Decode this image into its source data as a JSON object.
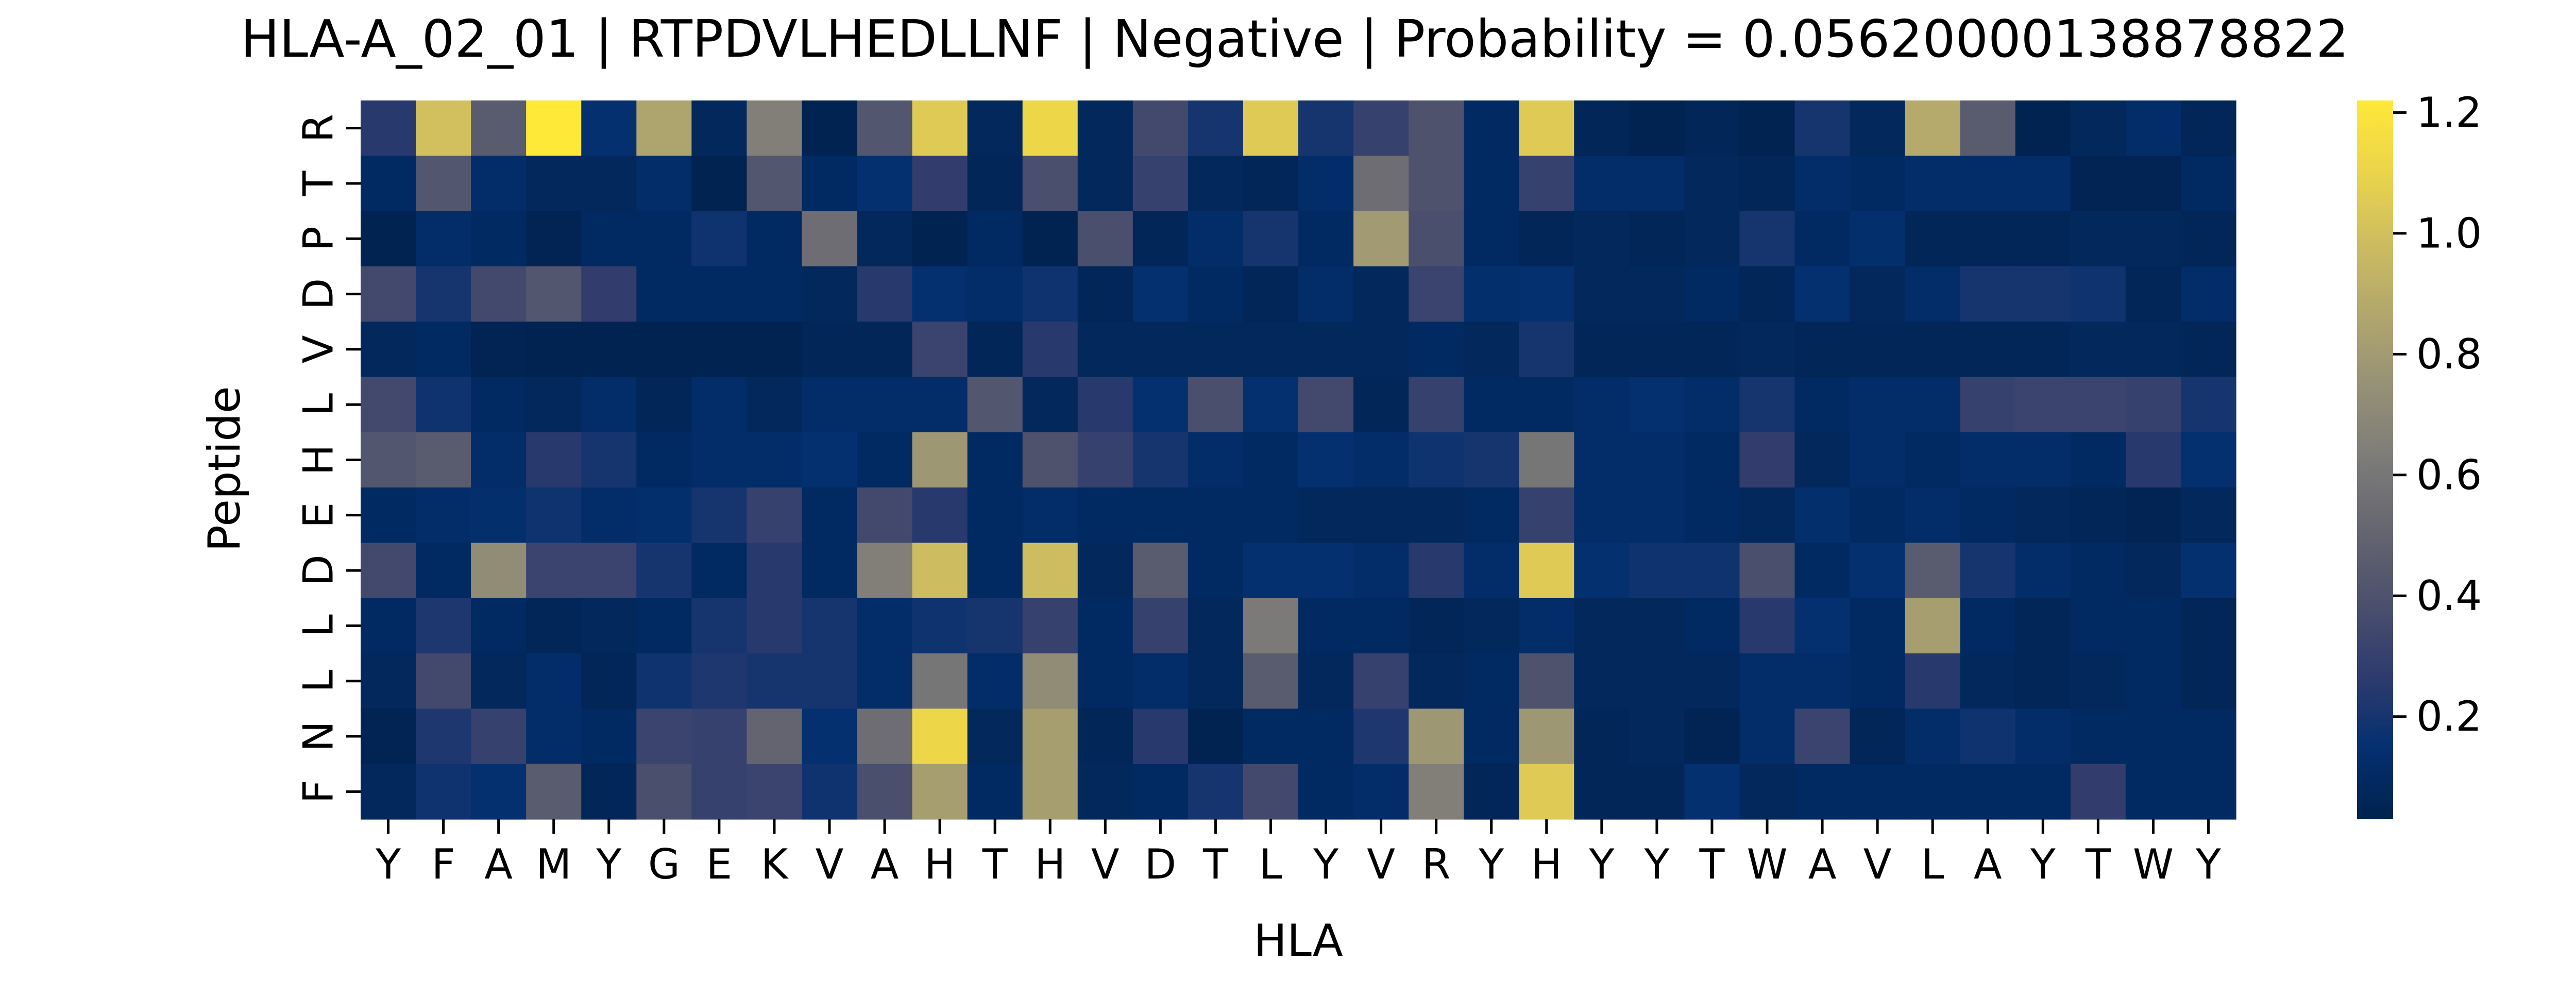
{
  "chart_data": {
    "type": "heatmap",
    "title": "HLA-A_02_01 | RTPDVLHEDLLNF | Negative | Probability = 0.05620000138878822",
    "xlabel": "HLA",
    "ylabel": "Peptide",
    "x_tick_labels": [
      "Y",
      "F",
      "A",
      "M",
      "Y",
      "G",
      "E",
      "K",
      "V",
      "A",
      "H",
      "T",
      "H",
      "V",
      "D",
      "T",
      "L",
      "Y",
      "V",
      "R",
      "Y",
      "H",
      "Y",
      "Y",
      "T",
      "W",
      "A",
      "V",
      "L",
      "A",
      "Y",
      "T",
      "W",
      "Y"
    ],
    "y_tick_labels": [
      "R",
      "T",
      "P",
      "D",
      "V",
      "L",
      "H",
      "E",
      "D",
      "L",
      "L",
      "N",
      "F"
    ],
    "colormap": "cividis",
    "colorbar": {
      "min": 0.03,
      "max": 1.22,
      "ticks": [
        0.2,
        0.4,
        0.6,
        0.8,
        1.0,
        1.2
      ],
      "tick_labels": [
        "0.2",
        "0.4",
        "0.6",
        "0.8",
        "1.0",
        "1.2"
      ]
    },
    "values": [
      [
        0.25,
        1.0,
        0.45,
        1.22,
        0.15,
        0.85,
        0.08,
        0.65,
        0.04,
        0.42,
        1.05,
        0.08,
        1.12,
        0.08,
        0.35,
        0.2,
        1.05,
        0.2,
        0.3,
        0.4,
        0.1,
        1.05,
        0.06,
        0.04,
        0.06,
        0.04,
        0.2,
        0.08,
        0.88,
        0.45,
        0.04,
        0.08,
        0.12,
        0.06
      ],
      [
        0.1,
        0.42,
        0.12,
        0.08,
        0.08,
        0.12,
        0.04,
        0.42,
        0.1,
        0.15,
        0.28,
        0.06,
        0.38,
        0.08,
        0.3,
        0.08,
        0.06,
        0.12,
        0.55,
        0.4,
        0.1,
        0.3,
        0.12,
        0.12,
        0.08,
        0.06,
        0.12,
        0.1,
        0.12,
        0.12,
        0.12,
        0.05,
        0.05,
        0.1
      ],
      [
        0.04,
        0.12,
        0.1,
        0.05,
        0.1,
        0.1,
        0.18,
        0.1,
        0.55,
        0.08,
        0.04,
        0.1,
        0.04,
        0.38,
        0.06,
        0.12,
        0.2,
        0.1,
        0.8,
        0.38,
        0.1,
        0.06,
        0.08,
        0.06,
        0.08,
        0.2,
        0.1,
        0.14,
        0.06,
        0.06,
        0.06,
        0.08,
        0.08,
        0.06
      ],
      [
        0.35,
        0.2,
        0.35,
        0.42,
        0.28,
        0.1,
        0.1,
        0.1,
        0.08,
        0.25,
        0.15,
        0.12,
        0.18,
        0.06,
        0.15,
        0.1,
        0.06,
        0.12,
        0.08,
        0.32,
        0.14,
        0.15,
        0.08,
        0.08,
        0.1,
        0.06,
        0.15,
        0.08,
        0.12,
        0.2,
        0.2,
        0.18,
        0.06,
        0.12
      ],
      [
        0.08,
        0.1,
        0.05,
        0.04,
        0.04,
        0.04,
        0.04,
        0.04,
        0.06,
        0.06,
        0.32,
        0.06,
        0.25,
        0.08,
        0.08,
        0.08,
        0.08,
        0.08,
        0.08,
        0.1,
        0.08,
        0.2,
        0.06,
        0.06,
        0.06,
        0.08,
        0.06,
        0.06,
        0.06,
        0.06,
        0.06,
        0.08,
        0.08,
        0.06
      ],
      [
        0.35,
        0.18,
        0.1,
        0.08,
        0.12,
        0.06,
        0.12,
        0.08,
        0.12,
        0.12,
        0.12,
        0.42,
        0.08,
        0.25,
        0.15,
        0.38,
        0.15,
        0.35,
        0.06,
        0.3,
        0.1,
        0.1,
        0.12,
        0.15,
        0.12,
        0.2,
        0.1,
        0.12,
        0.12,
        0.3,
        0.32,
        0.32,
        0.3,
        0.2
      ],
      [
        0.42,
        0.45,
        0.12,
        0.25,
        0.2,
        0.1,
        0.12,
        0.12,
        0.15,
        0.1,
        0.78,
        0.1,
        0.4,
        0.3,
        0.2,
        0.12,
        0.1,
        0.15,
        0.12,
        0.18,
        0.2,
        0.6,
        0.12,
        0.12,
        0.1,
        0.28,
        0.08,
        0.12,
        0.1,
        0.12,
        0.12,
        0.1,
        0.25,
        0.15
      ],
      [
        0.1,
        0.12,
        0.14,
        0.18,
        0.12,
        0.14,
        0.2,
        0.3,
        0.1,
        0.35,
        0.25,
        0.1,
        0.12,
        0.1,
        0.1,
        0.1,
        0.1,
        0.08,
        0.08,
        0.08,
        0.1,
        0.3,
        0.12,
        0.12,
        0.1,
        0.08,
        0.14,
        0.1,
        0.12,
        0.1,
        0.08,
        0.06,
        0.05,
        0.08
      ],
      [
        0.35,
        0.1,
        0.72,
        0.32,
        0.32,
        0.2,
        0.1,
        0.25,
        0.1,
        0.65,
        0.98,
        0.1,
        0.98,
        0.08,
        0.45,
        0.1,
        0.15,
        0.15,
        0.12,
        0.25,
        0.12,
        1.05,
        0.15,
        0.18,
        0.18,
        0.38,
        0.1,
        0.15,
        0.45,
        0.2,
        0.12,
        0.1,
        0.08,
        0.15
      ],
      [
        0.1,
        0.22,
        0.1,
        0.06,
        0.08,
        0.1,
        0.2,
        0.25,
        0.2,
        0.12,
        0.18,
        0.2,
        0.3,
        0.1,
        0.3,
        0.08,
        0.62,
        0.1,
        0.1,
        0.06,
        0.08,
        0.12,
        0.08,
        0.08,
        0.1,
        0.25,
        0.15,
        0.1,
        0.82,
        0.1,
        0.06,
        0.1,
        0.1,
        0.06
      ],
      [
        0.08,
        0.35,
        0.08,
        0.12,
        0.06,
        0.18,
        0.22,
        0.2,
        0.2,
        0.12,
        0.6,
        0.12,
        0.72,
        0.1,
        0.12,
        0.08,
        0.45,
        0.08,
        0.3,
        0.08,
        0.1,
        0.4,
        0.08,
        0.08,
        0.08,
        0.12,
        0.12,
        0.1,
        0.25,
        0.08,
        0.06,
        0.08,
        0.1,
        0.06
      ],
      [
        0.05,
        0.22,
        0.3,
        0.12,
        0.1,
        0.32,
        0.3,
        0.5,
        0.15,
        0.55,
        1.12,
        0.08,
        0.82,
        0.06,
        0.25,
        0.04,
        0.1,
        0.1,
        0.22,
        0.78,
        0.1,
        0.78,
        0.06,
        0.08,
        0.05,
        0.12,
        0.32,
        0.06,
        0.12,
        0.18,
        0.12,
        0.1,
        0.1,
        0.1
      ],
      [
        0.08,
        0.18,
        0.15,
        0.45,
        0.06,
        0.38,
        0.3,
        0.32,
        0.18,
        0.38,
        0.82,
        0.1,
        0.82,
        0.08,
        0.1,
        0.2,
        0.35,
        0.1,
        0.12,
        0.65,
        0.06,
        1.05,
        0.06,
        0.06,
        0.15,
        0.08,
        0.1,
        0.1,
        0.1,
        0.1,
        0.1,
        0.28,
        0.1,
        0.1
      ]
    ]
  }
}
